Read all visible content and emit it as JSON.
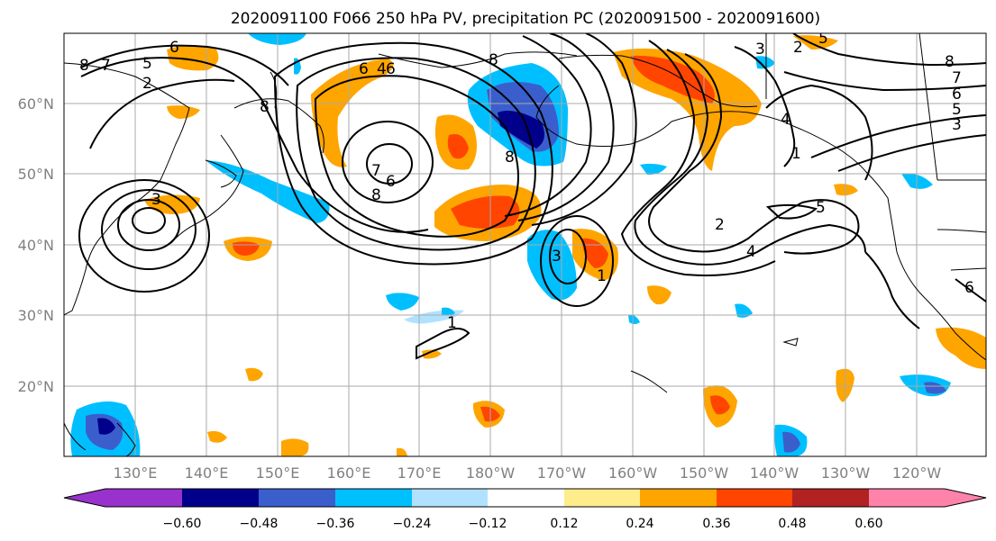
{
  "title": "2020091100 F066 250 hPa PV, precipitation PC (2020091500 - 2020091600)",
  "lat_labels": [
    "60°N",
    "50°N",
    "40°N",
    "30°N",
    "20°N"
  ],
  "lon_labels": [
    "130°E",
    "140°E",
    "150°E",
    "160°E",
    "170°E",
    "180°W",
    "170°W",
    "160°W",
    "150°W",
    "140°W",
    "130°W",
    "120°W"
  ],
  "colorbar": {
    "colors": [
      "#9932cc",
      "#00008b",
      "#3a5fcd",
      "#00bfff",
      "#b0e2ff",
      "#ffffff",
      "#ffec8b",
      "#ffa500",
      "#ff4500",
      "#b22222",
      "#ff82ab"
    ],
    "labels": [
      "−0.60",
      "−0.48",
      "−0.36",
      "−0.24",
      "−0.12",
      "0.12",
      "0.24",
      "0.36",
      "0.48",
      "0.60"
    ]
  },
  "contour_labels": [
    "8",
    "7",
    "5",
    "2",
    "6",
    "8",
    "6",
    "4",
    "6",
    "7",
    "6",
    "8",
    "3",
    "8",
    "8",
    "1",
    "3",
    "2",
    "4",
    "5",
    "1",
    "2",
    "3",
    "5",
    "8",
    "7",
    "6",
    "5",
    "3",
    "1",
    "4",
    "6"
  ]
}
